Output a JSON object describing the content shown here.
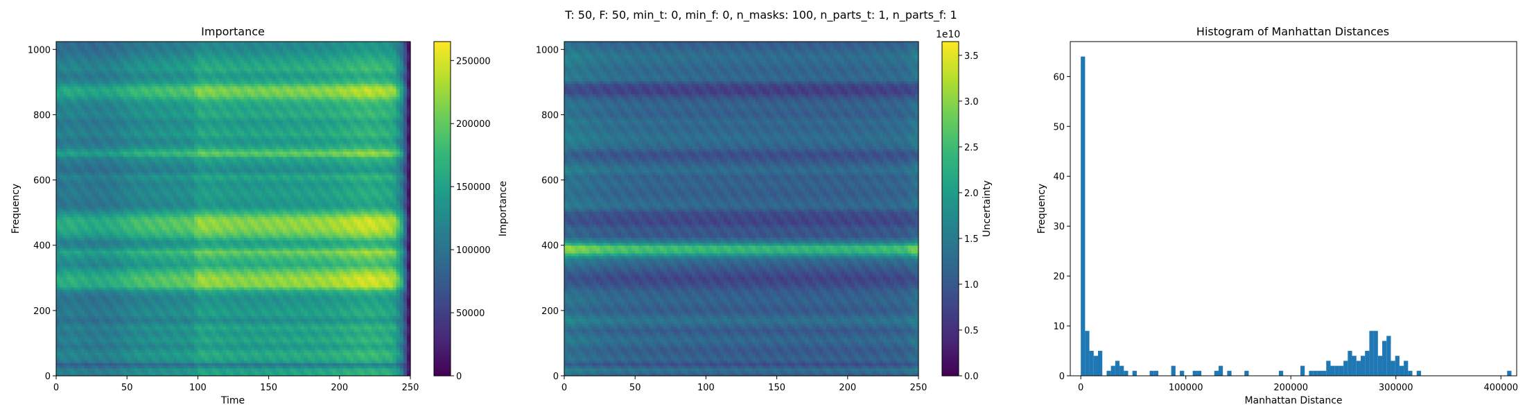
{
  "suptitle": "T: 50, F: 50, min_t: 0, min_f: 0, n_masks: 100, n_parts_t: 1, n_parts_f: 1",
  "chart_data": [
    {
      "type": "heatmap",
      "title": "Importance",
      "xlabel": "Time",
      "ylabel": "Frequency",
      "xlim": [
        0,
        250
      ],
      "ylim": [
        0,
        1024
      ],
      "xticks": [
        0,
        50,
        100,
        150,
        200,
        250
      ],
      "yticks": [
        0,
        200,
        400,
        600,
        800,
        1000
      ],
      "colormap": "viridis",
      "colorbar": {
        "label": "Importance",
        "range": [
          0,
          265000
        ],
        "ticks": [
          0,
          50000,
          100000,
          150000,
          200000,
          250000
        ]
      },
      "time_profile": [
        [
          0,
          0.62
        ],
        [
          10,
          0.66
        ],
        [
          25,
          0.62
        ],
        [
          40,
          0.64
        ],
        [
          55,
          0.72
        ],
        [
          80,
          0.76
        ],
        [
          97,
          0.78
        ],
        [
          100,
          0.88
        ],
        [
          130,
          0.84
        ],
        [
          160,
          0.86
        ],
        [
          190,
          0.88
        ],
        [
          220,
          0.97
        ],
        [
          238,
          0.92
        ],
        [
          245,
          0.6
        ],
        [
          248,
          0.15
        ],
        [
          250,
          0.05
        ]
      ],
      "freq_profile": [
        [
          0,
          0.68
        ],
        [
          20,
          0.66
        ],
        [
          35,
          0.45
        ],
        [
          45,
          0.66
        ],
        [
          70,
          0.72
        ],
        [
          90,
          0.6
        ],
        [
          110,
          0.7
        ],
        [
          130,
          0.62
        ],
        [
          150,
          0.7
        ],
        [
          170,
          0.55
        ],
        [
          190,
          0.66
        ],
        [
          210,
          0.62
        ],
        [
          240,
          0.58
        ],
        [
          260,
          0.7
        ],
        [
          275,
          0.95
        ],
        [
          300,
          0.98
        ],
        [
          320,
          0.88
        ],
        [
          340,
          0.72
        ],
        [
          360,
          0.78
        ],
        [
          380,
          0.9
        ],
        [
          395,
          0.72
        ],
        [
          410,
          0.65
        ],
        [
          430,
          0.85
        ],
        [
          450,
          0.95
        ],
        [
          480,
          0.97
        ],
        [
          500,
          0.78
        ],
        [
          520,
          0.6
        ],
        [
          540,
          0.62
        ],
        [
          560,
          0.65
        ],
        [
          590,
          0.6
        ],
        [
          610,
          0.7
        ],
        [
          630,
          0.55
        ],
        [
          650,
          0.62
        ],
        [
          670,
          0.7
        ],
        [
          680,
          0.92
        ],
        [
          700,
          0.7
        ],
        [
          720,
          0.6
        ],
        [
          740,
          0.7
        ],
        [
          760,
          0.66
        ],
        [
          780,
          0.62
        ],
        [
          800,
          0.72
        ],
        [
          820,
          0.68
        ],
        [
          840,
          0.72
        ],
        [
          860,
          0.9
        ],
        [
          880,
          0.95
        ],
        [
          900,
          0.72
        ],
        [
          920,
          0.62
        ],
        [
          940,
          0.72
        ],
        [
          960,
          0.68
        ],
        [
          980,
          0.62
        ],
        [
          1000,
          0.55
        ],
        [
          1024,
          0.55
        ]
      ]
    },
    {
      "type": "heatmap",
      "title": "",
      "xlabel": "",
      "ylabel": "",
      "xlim": [
        0,
        250
      ],
      "ylim": [
        0,
        1024
      ],
      "xticks": [
        0,
        50,
        100,
        150,
        200,
        250
      ],
      "yticks": [
        0,
        200,
        400,
        600,
        800,
        1000
      ],
      "colormap": "viridis",
      "colorbar": {
        "label": "Uncertainty",
        "range": [
          0,
          3.65
        ],
        "ticks": [
          0.0,
          0.5,
          1.0,
          1.5,
          2.0,
          2.5,
          3.0,
          3.5
        ],
        "tick_labels": [
          "0.0",
          "0.5",
          "1.0",
          "1.5",
          "2.0",
          "2.5",
          "3.0",
          "3.5"
        ],
        "offset_text": "1e10"
      },
      "time_profile": [
        [
          0,
          1.15
        ],
        [
          10,
          1.1
        ],
        [
          30,
          1.0
        ],
        [
          60,
          0.95
        ],
        [
          100,
          0.92
        ],
        [
          150,
          0.9
        ],
        [
          200,
          0.9
        ],
        [
          240,
          0.95
        ],
        [
          248,
          1.1
        ],
        [
          250,
          1.1
        ]
      ],
      "freq_profile": [
        [
          0,
          0.32
        ],
        [
          20,
          0.4
        ],
        [
          35,
          0.25
        ],
        [
          50,
          0.35
        ],
        [
          80,
          0.3
        ],
        [
          110,
          0.38
        ],
        [
          140,
          0.3
        ],
        [
          170,
          0.42
        ],
        [
          200,
          0.3
        ],
        [
          230,
          0.35
        ],
        [
          260,
          0.32
        ],
        [
          280,
          0.25
        ],
        [
          300,
          0.22
        ],
        [
          330,
          0.3
        ],
        [
          360,
          0.4
        ],
        [
          380,
          0.7
        ],
        [
          395,
          0.75
        ],
        [
          410,
          0.45
        ],
        [
          430,
          0.28
        ],
        [
          450,
          0.3
        ],
        [
          470,
          0.22
        ],
        [
          500,
          0.25
        ],
        [
          520,
          0.38
        ],
        [
          540,
          0.35
        ],
        [
          560,
          0.32
        ],
        [
          590,
          0.35
        ],
        [
          610,
          0.32
        ],
        [
          630,
          0.4
        ],
        [
          660,
          0.3
        ],
        [
          680,
          0.25
        ],
        [
          700,
          0.35
        ],
        [
          730,
          0.4
        ],
        [
          760,
          0.35
        ],
        [
          780,
          0.38
        ],
        [
          800,
          0.32
        ],
        [
          830,
          0.35
        ],
        [
          850,
          0.3
        ],
        [
          870,
          0.2
        ],
        [
          890,
          0.22
        ],
        [
          910,
          0.38
        ],
        [
          940,
          0.35
        ],
        [
          960,
          0.38
        ],
        [
          980,
          0.4
        ],
        [
          1000,
          0.35
        ],
        [
          1024,
          0.32
        ]
      ]
    },
    {
      "type": "bar",
      "title": "Histogram of Manhattan Distances",
      "xlabel": "Manhattan Distance",
      "ylabel": "Frequency",
      "xlim": [
        -10000,
        415000
      ],
      "ylim": [
        0,
        67
      ],
      "xticks": [
        0,
        100000,
        200000,
        300000,
        400000
      ],
      "yticks": [
        0,
        10,
        20,
        30,
        40,
        50,
        60
      ],
      "color": "#1f77b4",
      "bin_width": 4100,
      "bins": [
        [
          0,
          64
        ],
        [
          4100,
          9
        ],
        [
          8200,
          5
        ],
        [
          12300,
          4
        ],
        [
          16400,
          5
        ],
        [
          24600,
          1
        ],
        [
          28700,
          2
        ],
        [
          32800,
          3
        ],
        [
          36900,
          2
        ],
        [
          41000,
          1
        ],
        [
          49200,
          1
        ],
        [
          65600,
          1
        ],
        [
          69700,
          1
        ],
        [
          86100,
          2
        ],
        [
          94300,
          1
        ],
        [
          106600,
          1
        ],
        [
          110700,
          1
        ],
        [
          127100,
          1
        ],
        [
          131200,
          2
        ],
        [
          139400,
          1
        ],
        [
          155800,
          1
        ],
        [
          188600,
          1
        ],
        [
          209100,
          2
        ],
        [
          217300,
          1
        ],
        [
          221400,
          1
        ],
        [
          225500,
          1
        ],
        [
          229600,
          1
        ],
        [
          233700,
          3
        ],
        [
          237800,
          2
        ],
        [
          241900,
          2
        ],
        [
          246000,
          2
        ],
        [
          250100,
          3
        ],
        [
          254200,
          5
        ],
        [
          258300,
          4
        ],
        [
          262400,
          3
        ],
        [
          266500,
          4
        ],
        [
          270600,
          5
        ],
        [
          274700,
          9
        ],
        [
          278800,
          9
        ],
        [
          282900,
          4
        ],
        [
          287000,
          7
        ],
        [
          291100,
          8
        ],
        [
          295200,
          3
        ],
        [
          299300,
          4
        ],
        [
          303400,
          2
        ],
        [
          307500,
          3
        ],
        [
          311600,
          1
        ],
        [
          319800,
          1
        ],
        [
          405900,
          1
        ]
      ]
    }
  ]
}
